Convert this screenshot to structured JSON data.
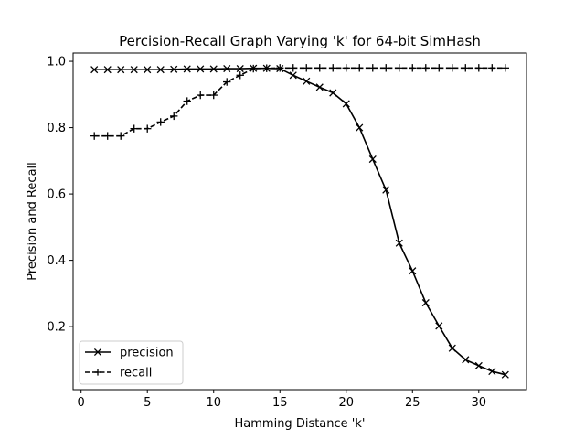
{
  "chart_data": {
    "type": "line",
    "title": "Percision-Recall Graph Varying 'k' for 64-bit SimHash",
    "xlabel": "Hamming Distance 'k'",
    "ylabel": "Precision and Recall",
    "xlim": [
      -0.6,
      33.6
    ],
    "ylim": [
      0.01,
      1.025
    ],
    "xticks": [
      0,
      5,
      10,
      15,
      20,
      25,
      30
    ],
    "yticks": [
      0.2,
      0.4,
      0.6,
      0.8,
      1.0
    ],
    "ytick_labels": [
      "0.2",
      "0.4",
      "0.6",
      "0.8",
      "1.0"
    ],
    "grid": false,
    "legend_position": "lower-left",
    "x": [
      1,
      2,
      3,
      4,
      5,
      6,
      7,
      8,
      9,
      10,
      11,
      12,
      13,
      14,
      15,
      16,
      17,
      18,
      19,
      20,
      21,
      22,
      23,
      24,
      25,
      26,
      27,
      28,
      29,
      30,
      31,
      32
    ],
    "series": [
      {
        "name": "precision",
        "style": "solid",
        "marker": "x",
        "color": "#000000",
        "values": [
          0.975,
          0.975,
          0.975,
          0.975,
          0.975,
          0.975,
          0.976,
          0.977,
          0.977,
          0.977,
          0.978,
          0.978,
          0.979,
          0.979,
          0.978,
          0.958,
          0.94,
          0.922,
          0.905,
          0.872,
          0.8,
          0.705,
          0.612,
          0.452,
          0.368,
          0.272,
          0.202,
          0.135,
          0.1,
          0.082,
          0.065,
          0.055
        ]
      },
      {
        "name": "recall",
        "style": "dashed",
        "marker": "+",
        "color": "#000000",
        "values": [
          0.775,
          0.775,
          0.775,
          0.797,
          0.797,
          0.817,
          0.835,
          0.88,
          0.898,
          0.898,
          0.938,
          0.958,
          0.978,
          0.979,
          0.98,
          0.98,
          0.98,
          0.98,
          0.98,
          0.98,
          0.98,
          0.98,
          0.98,
          0.98,
          0.98,
          0.98,
          0.98,
          0.98,
          0.98,
          0.98,
          0.98,
          0.98
        ]
      }
    ]
  }
}
